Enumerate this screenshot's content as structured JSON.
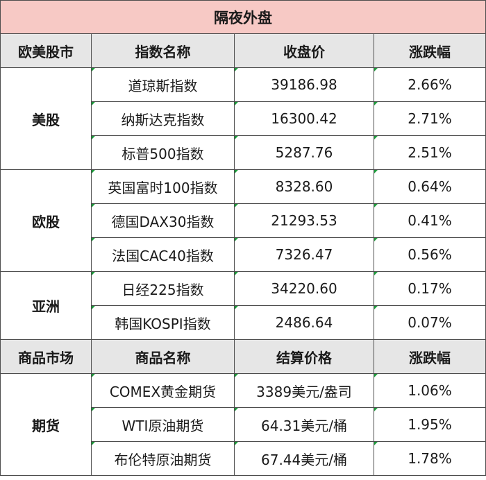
{
  "title": "隔夜外盘",
  "index_header": [
    "欧美股市",
    "指数名称",
    "收盘价",
    "涨跌幅"
  ],
  "index_groups": [
    {
      "group": "美股",
      "rows": [
        {
          "name": "道琼斯指数",
          "close": "39186.98",
          "change": "2.66%",
          "dir": "up"
        },
        {
          "name": "纳斯达克指数",
          "close": "16300.42",
          "change": "2.71%",
          "dir": "up"
        },
        {
          "name": "标普500指数",
          "close": "5287.76",
          "change": "2.51%",
          "dir": "up"
        }
      ]
    },
    {
      "group": "欧股",
      "rows": [
        {
          "name": "英国富时100指数",
          "close": "8328.60",
          "change": "0.64%",
          "dir": "up"
        },
        {
          "name": "德国DAX30指数",
          "close": "21293.53",
          "change": "0.41%",
          "dir": "up"
        },
        {
          "name": "法国CAC40指数",
          "close": "7326.47",
          "change": "0.56%",
          "dir": "up"
        }
      ]
    },
    {
      "group": "亚洲",
      "rows": [
        {
          "name": "日经225指数",
          "close": "34220.60",
          "change": "0.17%",
          "dir": "down"
        },
        {
          "name": "韩国KOSPI指数",
          "close": "2486.64",
          "change": "0.07%",
          "dir": "down"
        }
      ]
    }
  ],
  "commodity_header": [
    "商品市场",
    "商品名称",
    "结算价格",
    "涨跌幅"
  ],
  "commodity_groups": [
    {
      "group": "期货",
      "rows": [
        {
          "name": "COMEX黄金期货",
          "close": "3389美元/盎司",
          "change": "1.06%",
          "dir": "down"
        },
        {
          "name": "WTI原油期货",
          "close": "64.31美元/桶",
          "change": "1.95%",
          "dir": "up"
        },
        {
          "name": "布伦特原油期货",
          "close": "67.44美元/桶",
          "change": "1.78%",
          "dir": "up"
        }
      ]
    }
  ],
  "colors": {
    "up": "#d0021b",
    "down": "#16a34a",
    "title_bg": "#f7c9c5",
    "header_bg": "#e6e6e6"
  }
}
